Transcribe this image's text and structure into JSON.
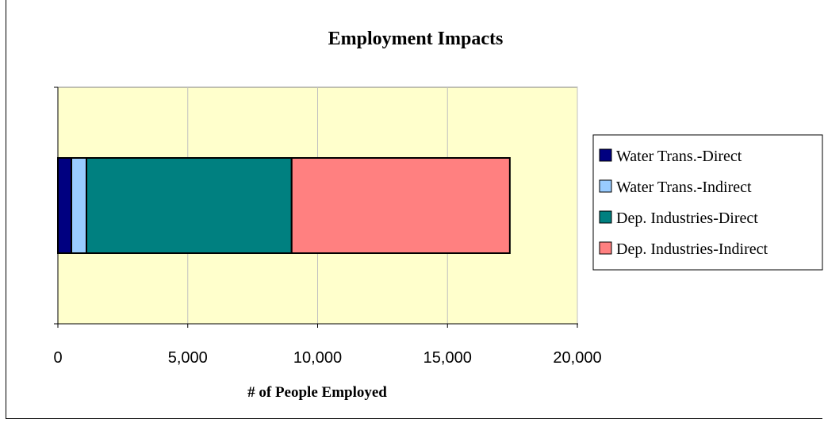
{
  "chart_data": {
    "type": "bar",
    "orientation": "horizontal",
    "stacked": true,
    "title": "Employment Impacts",
    "xlabel": "# of People Employed",
    "ylabel": "",
    "xlim": [
      0,
      20000
    ],
    "x_ticks": [
      0,
      5000,
      10000,
      15000,
      20000
    ],
    "x_tick_labels": [
      "0",
      "5,000",
      "10,000",
      "15,000",
      "20,000"
    ],
    "categories": [
      ""
    ],
    "series": [
      {
        "name": "Water Trans.-Direct",
        "values": [
          520
        ],
        "color": "#000080"
      },
      {
        "name": "Water Trans.-Indirect",
        "values": [
          580
        ],
        "color": "#99ccff"
      },
      {
        "name": "Dep. Industries-Direct",
        "values": [
          7900
        ],
        "color": "#008080"
      },
      {
        "name": "Dep. Industries-Indirect",
        "values": [
          8400
        ],
        "color": "#ff8080"
      }
    ],
    "grid": "vertical",
    "plot_background": "#ffffcc",
    "legend_position": "right"
  }
}
